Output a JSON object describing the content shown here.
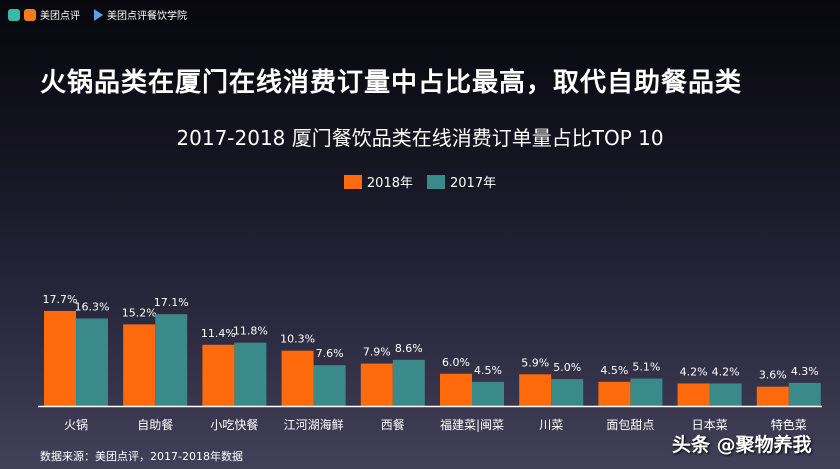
{
  "header": {
    "brand1": "美团点评",
    "brand2": "美团点评餐饮学院"
  },
  "title": "火锅品类在厦门在线消费订量中占比最高，取代自助餐品类",
  "source": "数据来源：美团点评，2017-2018年数据",
  "watermark": "头条 @聚物养我",
  "colors": {
    "s2018": "#ff6a0d",
    "s2017": "#3a8a8a"
  },
  "chart_data": {
    "type": "bar",
    "title": "2017-2018 厦门餐饮品类在线消费订单量占比TOP 10",
    "categories": [
      "火锅",
      "自助餐",
      "小吃快餐",
      "江河湖海鲜",
      "西餐",
      "福建菜|闽菜",
      "川菜",
      "面包甜点",
      "日本菜",
      "特色菜"
    ],
    "series": [
      {
        "name": "2018年",
        "values": [
          17.7,
          15.2,
          11.4,
          10.3,
          7.9,
          6.0,
          5.9,
          4.5,
          4.2,
          3.6
        ]
      },
      {
        "name": "2017年",
        "values": [
          16.3,
          17.1,
          11.8,
          7.6,
          8.6,
          4.5,
          5.0,
          5.1,
          4.2,
          4.3
        ]
      }
    ],
    "unit": "%",
    "ylim": [
      0,
      20
    ],
    "legend": "top-center",
    "grid": false
  }
}
